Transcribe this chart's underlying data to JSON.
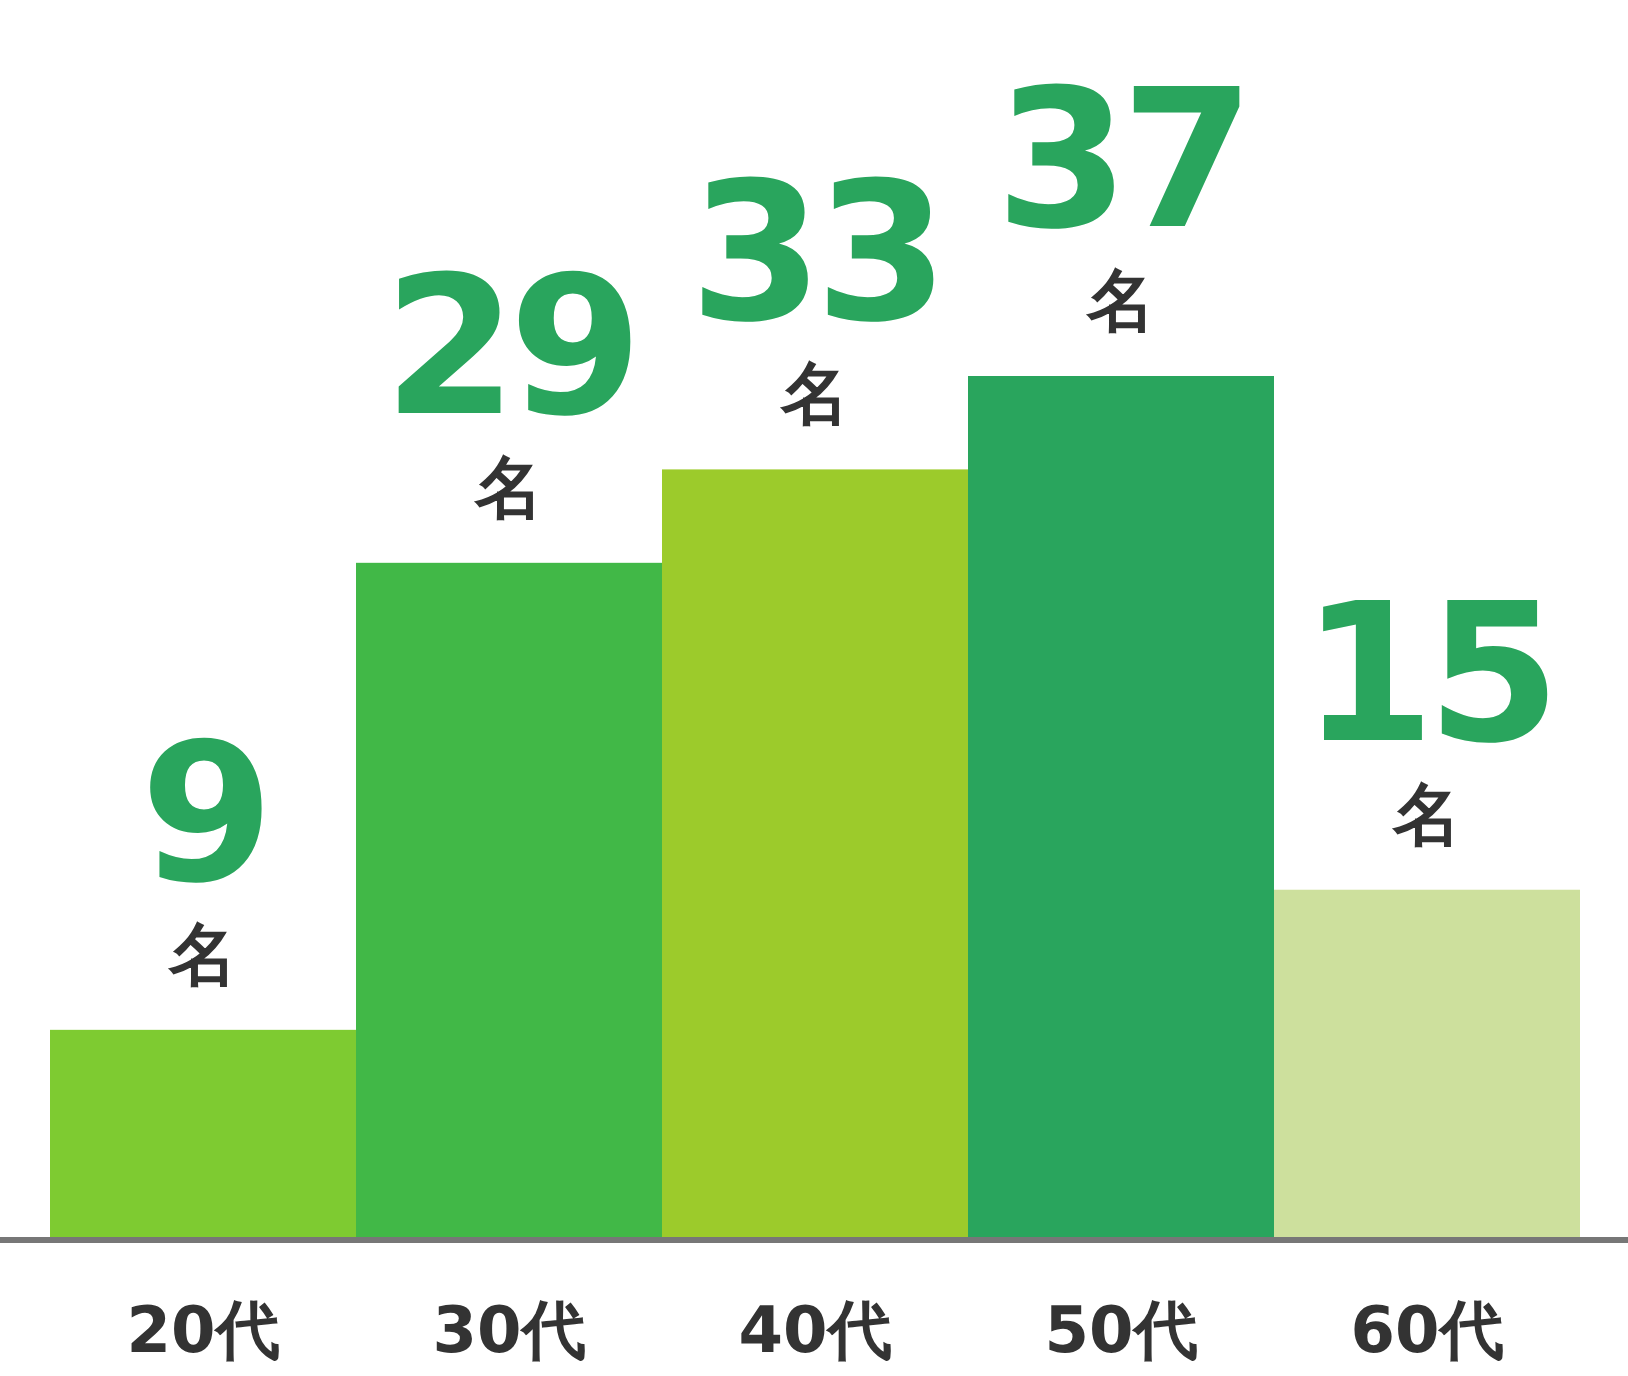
{
  "chart_data": {
    "type": "bar",
    "categories": [
      "20代",
      "30代",
      "40代",
      "50代",
      "60代"
    ],
    "values": [
      9,
      29,
      33,
      37,
      15
    ],
    "colors": [
      "#7ecb31",
      "#41b847",
      "#9ccb2b",
      "#29a55d",
      "#cde09d"
    ],
    "data_labels": true,
    "annotations": [
      {
        "text": "名",
        "x": "20代",
        "y": 9
      },
      {
        "text": "名",
        "x": "30代",
        "y": 29
      },
      {
        "text": "名",
        "x": "40代",
        "y": 33
      },
      {
        "text": "名",
        "x": "50代",
        "y": 37
      },
      {
        "text": "名",
        "x": "60代",
        "y": 15
      }
    ]
  }
}
